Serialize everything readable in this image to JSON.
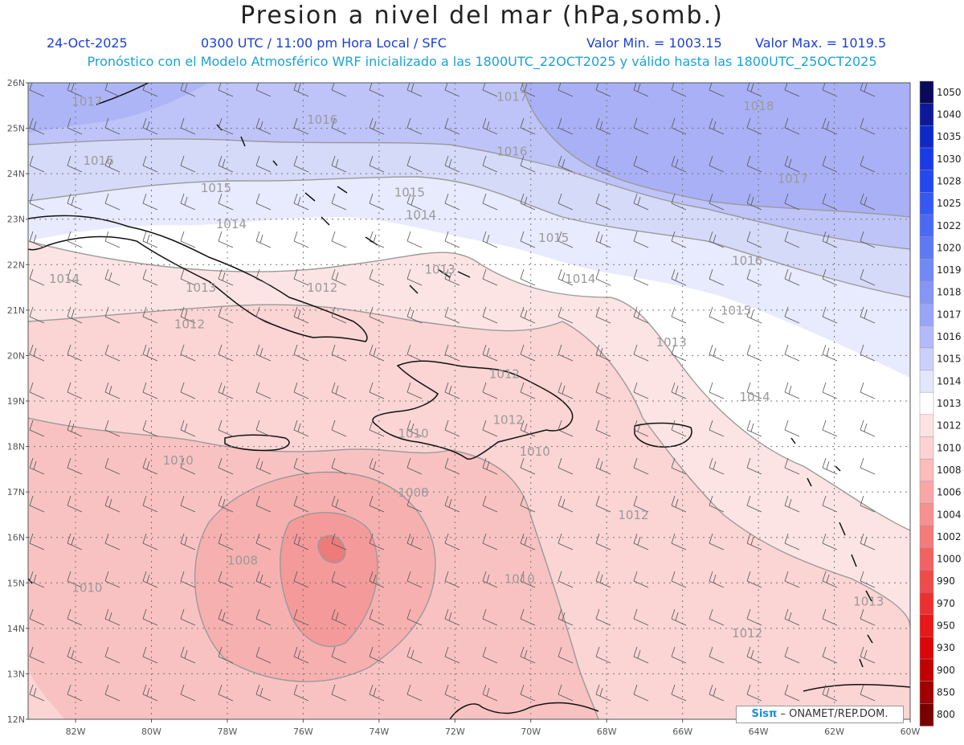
{
  "header": {
    "title": "Presion a nivel del mar (hPa,somb.)",
    "date": "24-Oct-2025",
    "time": "0300 UTC / 11:00 pm Hora Local / SFC",
    "min": "Valor Min. = 1003.15",
    "max": "Valor Max. = 1019.5",
    "model_line": "Pronóstico con el Modelo Atmosférico WRF inicializado a las 1800UTC_22OCT2025 y válido hasta las  1800UTC_25OCT2025"
  },
  "axes": {
    "lat_labels": [
      "26N",
      "25N",
      "24N",
      "23N",
      "22N",
      "21N",
      "20N",
      "19N",
      "18N",
      "17N",
      "16N",
      "15N",
      "14N",
      "13N",
      "12N"
    ],
    "lon_labels": [
      "82W",
      "80W",
      "78W",
      "76W",
      "74W",
      "72W",
      "70W",
      "68W",
      "66W",
      "64W",
      "62W",
      "60W"
    ]
  },
  "colorbar": {
    "levels": [
      "1050",
      "1040",
      "1035",
      "1030",
      "1028",
      "1025",
      "1022",
      "1020",
      "1019",
      "1018",
      "1017",
      "1016",
      "1015",
      "1014",
      "1013",
      "1012",
      "1010",
      "1008",
      "1006",
      "1004",
      "1002",
      "1000",
      "990",
      "970",
      "950",
      "930",
      "900",
      "850",
      "800"
    ],
    "colors": [
      "#0a0a5a",
      "#0c1a9a",
      "#0f28c8",
      "#1a3ae6",
      "#2448f0",
      "#3658f2",
      "#4a6af4",
      "#5d7af5",
      "#7189f6",
      "#8596f7",
      "#9aa5f8",
      "#b2baf9",
      "#cbd0fb",
      "#e3e6fd",
      "#ffffff",
      "#fde3e3",
      "#fcd2d2",
      "#fbbcbc",
      "#f9a6a6",
      "#f79090",
      "#f57a7a",
      "#f36262",
      "#f04a4a",
      "#ec3030",
      "#e81818",
      "#dd0606",
      "#c00000",
      "#a00000",
      "#7a0000"
    ]
  },
  "contour_labels": [
    {
      "text": "1017",
      "lon": -82.1,
      "lat": 25.5
    },
    {
      "text": "1016",
      "lon": -75.9,
      "lat": 25.1
    },
    {
      "text": "1017",
      "lon": -70.9,
      "lat": 25.6
    },
    {
      "text": "1018",
      "lon": -64.4,
      "lat": 25.4
    },
    {
      "text": "1016",
      "lon": -81.8,
      "lat": 24.2
    },
    {
      "text": "1016",
      "lon": -70.9,
      "lat": 24.4
    },
    {
      "text": "1015",
      "lon": -78.7,
      "lat": 23.6
    },
    {
      "text": "1015",
      "lon": -73.6,
      "lat": 23.5
    },
    {
      "text": "1017",
      "lon": -63.5,
      "lat": 23.8
    },
    {
      "text": "1014",
      "lon": -78.3,
      "lat": 22.8
    },
    {
      "text": "1014",
      "lon": -73.3,
      "lat": 23.0
    },
    {
      "text": "1015",
      "lon": -69.8,
      "lat": 22.5
    },
    {
      "text": "1016",
      "lon": -64.7,
      "lat": 22.0
    },
    {
      "text": "1014",
      "lon": -82.7,
      "lat": 21.6
    },
    {
      "text": "1013",
      "lon": -79.1,
      "lat": 21.4
    },
    {
      "text": "1012",
      "lon": -75.9,
      "lat": 21.4
    },
    {
      "text": "1013",
      "lon": -72.8,
      "lat": 21.8
    },
    {
      "text": "1014",
      "lon": -69.1,
      "lat": 21.6
    },
    {
      "text": "1015",
      "lon": -65.0,
      "lat": 20.9
    },
    {
      "text": "1012",
      "lon": -79.4,
      "lat": 20.6
    },
    {
      "text": "1013",
      "lon": -66.7,
      "lat": 20.2
    },
    {
      "text": "1012",
      "lon": -71.1,
      "lat": 19.5
    },
    {
      "text": "1014",
      "lon": -64.5,
      "lat": 19.0
    },
    {
      "text": "1012",
      "lon": -71.0,
      "lat": 18.5
    },
    {
      "text": "1010",
      "lon": -73.5,
      "lat": 18.2
    },
    {
      "text": "1010",
      "lon": -79.7,
      "lat": 17.6
    },
    {
      "text": "1010",
      "lon": -70.3,
      "lat": 17.8
    },
    {
      "text": "1008",
      "lon": -73.5,
      "lat": 16.9
    },
    {
      "text": "1012",
      "lon": -67.7,
      "lat": 16.4
    },
    {
      "text": "1008",
      "lon": -78.0,
      "lat": 15.4
    },
    {
      "text": "1010",
      "lon": -82.1,
      "lat": 14.8
    },
    {
      "text": "1010",
      "lon": -70.7,
      "lat": 15.0
    },
    {
      "text": "1013",
      "lon": -61.5,
      "lat": 14.5
    },
    {
      "text": "1012",
      "lon": -64.7,
      "lat": 13.8
    }
  ],
  "credit": {
    "logo": "Sisπ",
    "text": "– ONAMET/REP.DOM."
  }
}
